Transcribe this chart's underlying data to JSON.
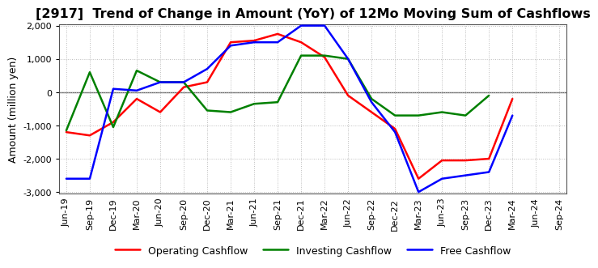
{
  "title": "[2917]  Trend of Change in Amount (YoY) of 12Mo Moving Sum of Cashflows",
  "ylabel": "Amount (million yen)",
  "xlabels": [
    "Jun-19",
    "Sep-19",
    "Dec-19",
    "Mar-20",
    "Jun-20",
    "Sep-20",
    "Dec-20",
    "Mar-21",
    "Jun-21",
    "Sep-21",
    "Dec-21",
    "Mar-22",
    "Jun-22",
    "Sep-22",
    "Dec-22",
    "Mar-23",
    "Jun-23",
    "Sep-23",
    "Dec-23",
    "Mar-24",
    "Jun-24",
    "Sep-24"
  ],
  "operating": [
    -1200,
    -1300,
    -900,
    -200,
    -600,
    150,
    300,
    1500,
    1550,
    1750,
    1500,
    1050,
    -100,
    -600,
    -1100,
    -2600,
    -2050,
    -2050,
    -2000,
    -200,
    null,
    null
  ],
  "investing": [
    -1150,
    600,
    -1050,
    650,
    300,
    300,
    -550,
    -600,
    -350,
    -300,
    1100,
    1100,
    1000,
    -200,
    -700,
    -700,
    -600,
    -700,
    -100,
    null,
    null,
    null
  ],
  "free": [
    -2600,
    -2600,
    100,
    50,
    300,
    300,
    700,
    1400,
    1500,
    1500,
    2000,
    2000,
    1000,
    -300,
    -1200,
    -3000,
    -2600,
    -2500,
    -2400,
    -700,
    null,
    null
  ],
  "operating_color": "#ff0000",
  "investing_color": "#008000",
  "free_color": "#0000ff",
  "ylim_min": -3000,
  "ylim_max": 2000,
  "yticks": [
    -3000,
    -2000,
    -1000,
    0,
    1000,
    2000
  ],
  "bg_color": "#ffffff",
  "grid_color": "#bbbbbb",
  "zero_line_color": "#666666",
  "linewidth": 1.8,
  "title_fontsize": 11.5,
  "tick_fontsize": 8,
  "ylabel_fontsize": 9,
  "legend_fontsize": 9
}
